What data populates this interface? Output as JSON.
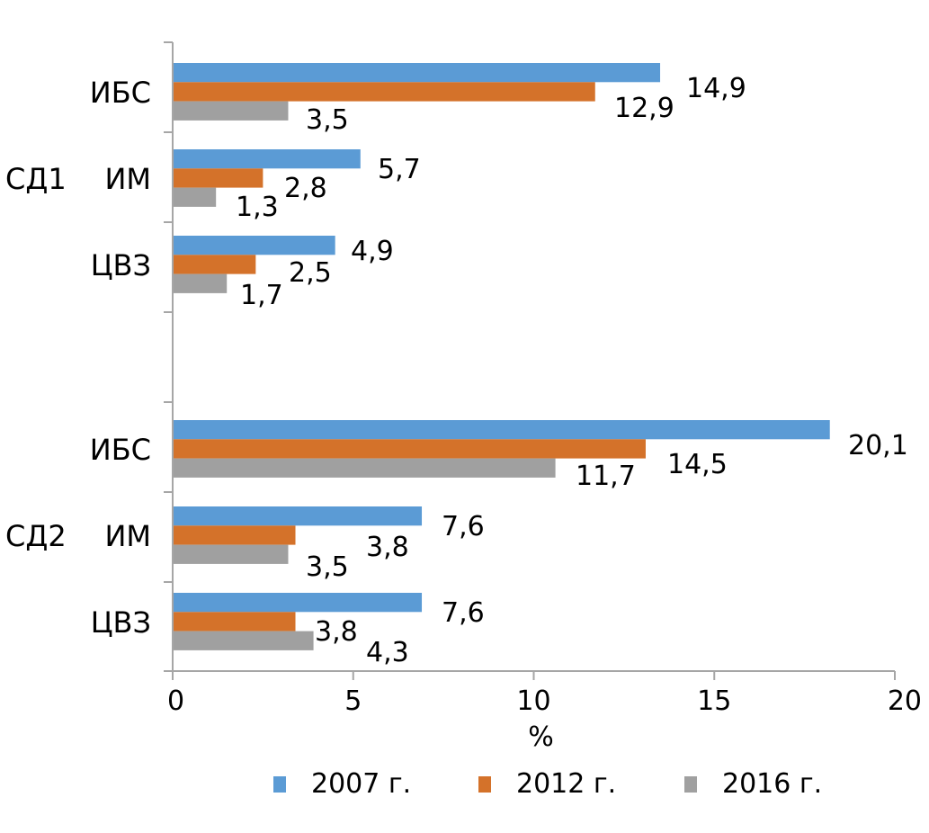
{
  "chart_data": {
    "type": "bar",
    "orientation": "horizontal",
    "xlabel": "%",
    "xlim": [
      0,
      20
    ],
    "xticks": [
      "0",
      "5",
      "10",
      "15",
      "20"
    ],
    "groups": [
      {
        "name": "СД1",
        "categories": [
          {
            "name": "ИБС",
            "labels": [
              "14,9",
              "12,9",
              "3,5"
            ],
            "values": [
              14.9,
              12.9,
              3.5
            ],
            "bar_lengths": [
              13.5,
              11.7,
              3.2
            ]
          },
          {
            "name": "ИМ",
            "labels": [
              "5,7",
              "2,8",
              "1,3"
            ],
            "values": [
              5.7,
              2.8,
              1.3
            ],
            "bar_lengths": [
              5.2,
              2.5,
              1.2
            ]
          },
          {
            "name": "ЦВЗ",
            "labels": [
              "4,9",
              "2,5",
              "1,7"
            ],
            "values": [
              4.9,
              2.5,
              1.7
            ],
            "bar_lengths": [
              4.5,
              2.3,
              1.5
            ]
          }
        ]
      },
      {
        "name": "СД2",
        "categories": [
          {
            "name": "ИБС",
            "labels": [
              "20,1",
              "14,5",
              "11,7"
            ],
            "values": [
              20.1,
              14.5,
              11.7
            ],
            "bar_lengths": [
              18.2,
              13.1,
              10.6
            ]
          },
          {
            "name": "ИМ",
            "labels": [
              "7,6",
              "3,8",
              "3,5"
            ],
            "values": [
              7.6,
              3.8,
              3.5
            ],
            "bar_lengths": [
              6.9,
              3.4,
              3.2
            ]
          },
          {
            "name": "ЦВЗ",
            "labels": [
              "7,6",
              "3,8",
              "4,3"
            ],
            "values": [
              7.6,
              3.8,
              4.3
            ],
            "bar_lengths": [
              6.9,
              3.4,
              3.9
            ]
          }
        ]
      }
    ],
    "series": [
      {
        "name": "2007 г.",
        "color": "#5b9bd5"
      },
      {
        "name": "2012 г.",
        "color": "#d4722a"
      },
      {
        "name": "2016 г.",
        "color": "#a0a0a0"
      }
    ],
    "legend_position": "bottom",
    "grid": false
  }
}
